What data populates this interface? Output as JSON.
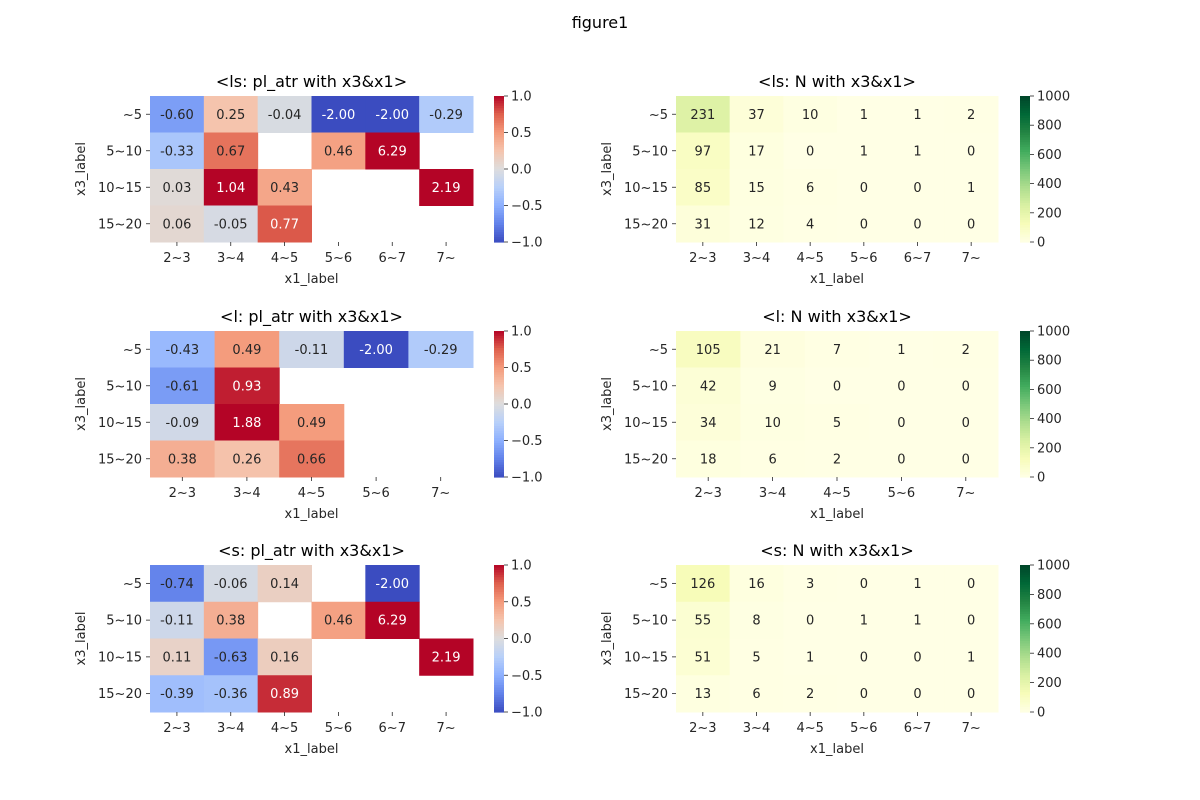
{
  "figure_title": "figure1",
  "colorbars": {
    "diverging": {
      "ticks": [
        "1.0",
        "0.5",
        "0.0",
        "−0.5",
        "−1.0"
      ],
      "tick_values": [
        1.0,
        0.5,
        0.0,
        -0.5,
        -1.0
      ],
      "min": -1.0,
      "max": 1.0
    },
    "sequential": {
      "ticks": [
        "1000",
        "800",
        "600",
        "400",
        "200",
        "0"
      ],
      "tick_values": [
        1000,
        800,
        600,
        400,
        200,
        0
      ],
      "min": 0,
      "max": 1000
    }
  },
  "chart_data": [
    {
      "type": "heatmap",
      "title": "<ls: pl_atr with x3&x1>",
      "xlabel": "x1_label",
      "ylabel": "x3_label",
      "colormap": "coolwarm",
      "vmin": -1.0,
      "vmax": 1.0,
      "x_categories": [
        "2~3",
        "3~4",
        "4~5",
        "5~6",
        "6~7",
        "7~"
      ],
      "y_categories": [
        "~5",
        "5~10",
        "10~15",
        "15~20"
      ],
      "values": [
        [
          -0.6,
          0.25,
          -0.04,
          -2.0,
          -2.0,
          -0.29
        ],
        [
          -0.33,
          0.67,
          null,
          0.46,
          6.29,
          null
        ],
        [
          0.03,
          1.04,
          0.43,
          null,
          null,
          2.19
        ],
        [
          0.06,
          -0.05,
          0.77,
          null,
          null,
          null
        ]
      ]
    },
    {
      "type": "heatmap",
      "title": "<ls: N with x3&x1>",
      "xlabel": "x1_label",
      "ylabel": "x3_label",
      "colormap": "Greens",
      "vmin": 0,
      "vmax": 1000,
      "x_categories": [
        "2~3",
        "3~4",
        "4~5",
        "5~6",
        "6~7",
        "7~"
      ],
      "y_categories": [
        "~5",
        "5~10",
        "10~15",
        "15~20"
      ],
      "values": [
        [
          231,
          37,
          10,
          1,
          1,
          2
        ],
        [
          97,
          17,
          0,
          1,
          1,
          0
        ],
        [
          85,
          15,
          6,
          0,
          0,
          1
        ],
        [
          31,
          12,
          4,
          0,
          0,
          0
        ]
      ]
    },
    {
      "type": "heatmap",
      "title": "<l: pl_atr with x3&x1>",
      "xlabel": "x1_label",
      "ylabel": "x3_label",
      "colormap": "coolwarm",
      "vmin": -1.0,
      "vmax": 1.0,
      "x_categories": [
        "2~3",
        "3~4",
        "4~5",
        "5~6",
        "7~"
      ],
      "y_categories": [
        "~5",
        "5~10",
        "10~15",
        "15~20"
      ],
      "values": [
        [
          -0.43,
          0.49,
          -0.11,
          -2.0,
          -0.29
        ],
        [
          -0.61,
          0.93,
          null,
          null,
          null
        ],
        [
          -0.09,
          1.88,
          0.49,
          null,
          null
        ],
        [
          0.38,
          0.26,
          0.66,
          null,
          null
        ]
      ]
    },
    {
      "type": "heatmap",
      "title": "<l: N with x3&x1>",
      "xlabel": "x1_label",
      "ylabel": "x3_label",
      "colormap": "Greens",
      "vmin": 0,
      "vmax": 1000,
      "x_categories": [
        "2~3",
        "3~4",
        "4~5",
        "5~6",
        "7~"
      ],
      "y_categories": [
        "~5",
        "5~10",
        "10~15",
        "15~20"
      ],
      "values": [
        [
          105,
          21,
          7,
          1,
          2
        ],
        [
          42,
          9,
          0,
          0,
          0
        ],
        [
          34,
          10,
          5,
          0,
          0
        ],
        [
          18,
          6,
          2,
          0,
          0
        ]
      ]
    },
    {
      "type": "heatmap",
      "title": "<s: pl_atr with x3&x1>",
      "xlabel": "x1_label",
      "ylabel": "x3_label",
      "colormap": "coolwarm",
      "vmin": -1.0,
      "vmax": 1.0,
      "x_categories": [
        "2~3",
        "3~4",
        "4~5",
        "5~6",
        "6~7",
        "7~"
      ],
      "y_categories": [
        "~5",
        "5~10",
        "10~15",
        "15~20"
      ],
      "values": [
        [
          -0.74,
          -0.06,
          0.14,
          null,
          -2.0,
          null
        ],
        [
          -0.11,
          0.38,
          null,
          0.46,
          6.29,
          null
        ],
        [
          0.11,
          -0.63,
          0.16,
          null,
          null,
          2.19
        ],
        [
          -0.39,
          -0.36,
          0.89,
          null,
          null,
          null
        ]
      ]
    },
    {
      "type": "heatmap",
      "title": "<s: N with x3&x1>",
      "xlabel": "x1_label",
      "ylabel": "x3_label",
      "colormap": "Greens",
      "vmin": 0,
      "vmax": 1000,
      "x_categories": [
        "2~3",
        "3~4",
        "4~5",
        "5~6",
        "6~7",
        "7~"
      ],
      "y_categories": [
        "~5",
        "5~10",
        "10~15",
        "15~20"
      ],
      "values": [
        [
          126,
          16,
          3,
          0,
          1,
          0
        ],
        [
          55,
          8,
          0,
          1,
          1,
          0
        ],
        [
          51,
          5,
          1,
          0,
          0,
          1
        ],
        [
          13,
          6,
          2,
          0,
          0,
          0
        ]
      ]
    }
  ]
}
